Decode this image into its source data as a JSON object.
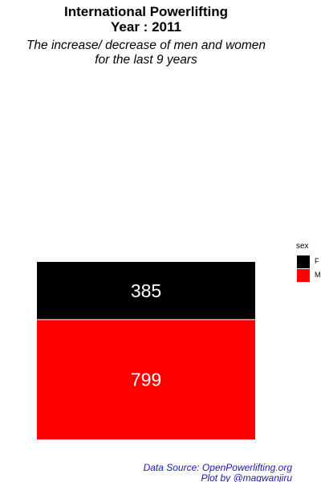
{
  "title": {
    "line1": "International Powerlifting",
    "line2": "Year : 2011"
  },
  "subtitle": {
    "line1": "The increase/ decrease of men and women",
    "line2": "for the last 9 years"
  },
  "legend": {
    "title": "sex",
    "items": [
      {
        "label": "F",
        "color": "#000000"
      },
      {
        "label": "M",
        "color": "#ff0000"
      }
    ]
  },
  "caption": {
    "line1": "Data Source: OpenPowerlifting.org",
    "line2": "Plot by @magwanjiru",
    "color": "#1a1aa6"
  },
  "chart_data": {
    "type": "bar",
    "stacked": true,
    "categories": [
      "2011"
    ],
    "series": [
      {
        "name": "F",
        "values": [
          385
        ],
        "color": "#000000"
      },
      {
        "name": "M",
        "values": [
          799
        ],
        "color": "#ff0000"
      }
    ],
    "data_label_color": "#ffffff",
    "grid": false,
    "axes_visible": false,
    "legend_position": "right"
  }
}
